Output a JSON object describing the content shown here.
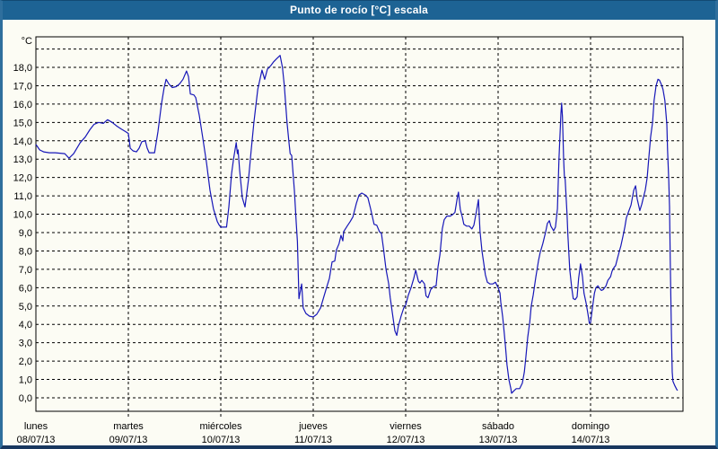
{
  "window": {
    "title": "Punto de rocío [°C] escala"
  },
  "colors": {
    "titlebar_bg": "#1d6394",
    "titlebar_text": "#ffffff",
    "frame_side": "#2f6f9d",
    "frame_bottom": "#18375f",
    "page_bg": "#fcfcf4",
    "grid": "#000000",
    "axis_text": "#000000",
    "line": "#1717b8"
  },
  "chart_data": {
    "type": "line",
    "title": "Punto de rocío [°C] escala",
    "xlabel": "",
    "ylabel": "°C",
    "grid": "dashed",
    "legend": "none",
    "ylim": [
      0,
      19.7
    ],
    "y_gridline_step": 1,
    "y_gridline_max": 19,
    "y_axis": {
      "unit_label": "°C",
      "tick_values": [
        0,
        1,
        2,
        3,
        4,
        5,
        6,
        7,
        8,
        9,
        10,
        11,
        12,
        13,
        14,
        15,
        16,
        17,
        18
      ],
      "tick_labels": [
        "0,0",
        "1,0",
        "2,0",
        "3,0",
        "4,0",
        "5,0",
        "6,0",
        "7,0",
        "8,0",
        "9,0",
        "10,0",
        "11,0",
        "12,0",
        "13,0",
        "14,0",
        "15,0",
        "16,0",
        "17,0",
        "18,0"
      ]
    },
    "x_axis": {
      "hours_total": 168,
      "hours_per_day": 24,
      "days": [
        {
          "name": "lunes",
          "date": "08/07/13"
        },
        {
          "name": "martes",
          "date": "09/07/13"
        },
        {
          "name": "miércoles",
          "date": "10/07/13"
        },
        {
          "name": "jueves",
          "date": "11/07/13"
        },
        {
          "name": "viernes",
          "date": "12/07/13"
        },
        {
          "name": "sábado",
          "date": "13/07/13"
        },
        {
          "name": "domingo",
          "date": "14/07/13"
        }
      ]
    },
    "series": [
      {
        "name": "Punto de rocío",
        "color": "#1717b8",
        "points": [
          [
            0,
            13.8
          ],
          [
            1,
            13.5
          ],
          [
            2,
            13.4
          ],
          [
            3.5,
            13.35
          ],
          [
            5,
            13.35
          ],
          [
            7.5,
            13.3
          ],
          [
            8.6,
            13.05
          ],
          [
            9.8,
            13.3
          ],
          [
            11.5,
            13.9
          ],
          [
            12.8,
            14.2
          ],
          [
            14,
            14.6
          ],
          [
            15.1,
            14.9
          ],
          [
            16.3,
            15.0
          ],
          [
            17.5,
            14.95
          ],
          [
            18.6,
            15.15
          ],
          [
            19.8,
            15.0
          ],
          [
            21,
            14.8
          ],
          [
            22.1,
            14.65
          ],
          [
            23.3,
            14.5
          ],
          [
            24,
            14.4
          ],
          [
            24.5,
            13.6
          ],
          [
            25.2,
            13.45
          ],
          [
            26.1,
            13.4
          ],
          [
            26.8,
            13.6
          ],
          [
            27.5,
            13.95
          ],
          [
            28.4,
            14.0
          ],
          [
            28.9,
            13.6
          ],
          [
            29.4,
            13.35
          ],
          [
            30.8,
            13.35
          ],
          [
            31.7,
            14.5
          ],
          [
            32.6,
            16.0
          ],
          [
            33.3,
            16.9
          ],
          [
            33.8,
            17.35
          ],
          [
            34.5,
            17.1
          ],
          [
            35.4,
            16.9
          ],
          [
            36.4,
            16.95
          ],
          [
            37.3,
            17.1
          ],
          [
            38.2,
            17.35
          ],
          [
            39.1,
            17.8
          ],
          [
            39.6,
            17.5
          ],
          [
            40.1,
            16.55
          ],
          [
            41,
            16.5
          ],
          [
            41.5,
            16.35
          ],
          [
            42.4,
            15.4
          ],
          [
            43.3,
            14.2
          ],
          [
            44.3,
            12.8
          ],
          [
            45.2,
            11.3
          ],
          [
            46.1,
            10.3
          ],
          [
            47.1,
            9.6
          ],
          [
            47.6,
            9.4
          ],
          [
            48,
            9.3
          ],
          [
            49,
            9.3
          ],
          [
            49.5,
            9.3
          ],
          [
            50.1,
            10.4
          ],
          [
            50.8,
            12.2
          ],
          [
            51.3,
            13.0
          ],
          [
            52,
            13.9
          ],
          [
            52.3,
            13.3
          ],
          [
            52.5,
            13.5
          ],
          [
            52.9,
            12.4
          ],
          [
            53.6,
            10.9
          ],
          [
            54.3,
            10.4
          ],
          [
            55.2,
            11.9
          ],
          [
            55.9,
            13.5
          ],
          [
            56.6,
            15.0
          ],
          [
            57.6,
            16.8
          ],
          [
            58.7,
            17.85
          ],
          [
            59.4,
            17.35
          ],
          [
            60.1,
            17.9
          ],
          [
            61,
            18.1
          ],
          [
            61.7,
            18.3
          ],
          [
            62.4,
            18.45
          ],
          [
            63.4,
            18.65
          ],
          [
            64,
            18.0
          ],
          [
            64.5,
            17.0
          ],
          [
            65.2,
            15.0
          ],
          [
            65.7,
            13.9
          ],
          [
            66,
            13.3
          ],
          [
            66.4,
            13.2
          ],
          [
            66.6,
            12.7
          ],
          [
            67.1,
            11.3
          ],
          [
            67.6,
            9.5
          ],
          [
            67.9,
            8.5
          ],
          [
            68.3,
            5.4
          ],
          [
            69,
            6.2
          ],
          [
            69.4,
            4.9
          ],
          [
            70.1,
            4.6
          ],
          [
            71,
            4.45
          ],
          [
            72,
            4.4
          ],
          [
            72.9,
            4.55
          ],
          [
            73.9,
            4.9
          ],
          [
            74.6,
            5.4
          ],
          [
            75.3,
            5.9
          ],
          [
            76.2,
            6.5
          ],
          [
            76.9,
            7.4
          ],
          [
            77.6,
            7.45
          ],
          [
            78,
            8.05
          ],
          [
            78.7,
            8.4
          ],
          [
            79.2,
            8.85
          ],
          [
            79.7,
            8.55
          ],
          [
            79.9,
            9.05
          ],
          [
            80.8,
            9.35
          ],
          [
            81.6,
            9.6
          ],
          [
            82.3,
            9.85
          ],
          [
            83.2,
            10.6
          ],
          [
            83.9,
            11.05
          ],
          [
            84.6,
            11.15
          ],
          [
            85.5,
            11.05
          ],
          [
            86.2,
            10.9
          ],
          [
            86.9,
            10.3
          ],
          [
            87.8,
            9.45
          ],
          [
            88.5,
            9.4
          ],
          [
            89.2,
            9.05
          ],
          [
            89.7,
            8.95
          ],
          [
            90.2,
            8.2
          ],
          [
            90.9,
            7.0
          ],
          [
            91.6,
            6.2
          ],
          [
            92,
            5.45
          ],
          [
            92.7,
            4.4
          ],
          [
            93.2,
            3.65
          ],
          [
            93.7,
            3.4
          ],
          [
            94.1,
            3.9
          ],
          [
            94.8,
            4.45
          ],
          [
            95.5,
            4.9
          ],
          [
            96,
            5.05
          ],
          [
            96.7,
            5.6
          ],
          [
            97.4,
            6.0
          ],
          [
            98.1,
            6.5
          ],
          [
            98.6,
            6.95
          ],
          [
            99.3,
            6.35
          ],
          [
            99.7,
            6.25
          ],
          [
            100.2,
            6.4
          ],
          [
            100.9,
            6.2
          ],
          [
            101.3,
            5.55
          ],
          [
            101.8,
            5.45
          ],
          [
            102.5,
            5.9
          ],
          [
            103.2,
            6.05
          ],
          [
            103.9,
            6.1
          ],
          [
            104.4,
            7.15
          ],
          [
            104.9,
            7.8
          ],
          [
            105.5,
            9.2
          ],
          [
            106,
            9.7
          ],
          [
            106.7,
            9.9
          ],
          [
            107.6,
            9.9
          ],
          [
            108.3,
            10.0
          ],
          [
            108.8,
            10.1
          ],
          [
            109.5,
            11.0
          ],
          [
            109.7,
            11.2
          ],
          [
            110.2,
            10.25
          ],
          [
            110.7,
            9.85
          ],
          [
            111.1,
            9.45
          ],
          [
            111.8,
            9.35
          ],
          [
            112.5,
            9.35
          ],
          [
            113.2,
            9.2
          ],
          [
            113.7,
            9.4
          ],
          [
            114.4,
            10.2
          ],
          [
            114.9,
            10.8
          ],
          [
            115.3,
            9.1
          ],
          [
            115.8,
            8.0
          ],
          [
            116.3,
            7.3
          ],
          [
            116.7,
            6.7
          ],
          [
            117.2,
            6.3
          ],
          [
            117.9,
            6.2
          ],
          [
            118.6,
            6.2
          ],
          [
            119.3,
            6.3
          ],
          [
            120,
            6.0
          ],
          [
            120.5,
            5.7
          ],
          [
            120.7,
            5.2
          ],
          [
            121.2,
            4.4
          ],
          [
            121.6,
            3.5
          ],
          [
            121.9,
            2.8
          ],
          [
            122.3,
            1.8
          ],
          [
            122.8,
            1.0
          ],
          [
            123.3,
            0.5
          ],
          [
            123.5,
            0.25
          ],
          [
            124.2,
            0.4
          ],
          [
            124.7,
            0.5
          ],
          [
            125.6,
            0.5
          ],
          [
            126.3,
            0.8
          ],
          [
            126.8,
            1.4
          ],
          [
            127.2,
            2.2
          ],
          [
            127.7,
            3.3
          ],
          [
            128.2,
            4.1
          ],
          [
            128.6,
            5.0
          ],
          [
            129.1,
            5.6
          ],
          [
            129.8,
            6.6
          ],
          [
            130.5,
            7.5
          ],
          [
            130.9,
            7.9
          ],
          [
            131.6,
            8.4
          ],
          [
            132.3,
            9.0
          ],
          [
            132.8,
            9.5
          ],
          [
            133.3,
            9.65
          ],
          [
            133.7,
            9.35
          ],
          [
            134.4,
            9.1
          ],
          [
            134.9,
            9.3
          ],
          [
            135.4,
            10.3
          ],
          [
            135.8,
            13.0
          ],
          [
            136.3,
            15.5
          ],
          [
            136.5,
            16.05
          ],
          [
            136.7,
            15.3
          ],
          [
            137,
            13.0
          ],
          [
            137.2,
            12.1
          ],
          [
            137.4,
            11.9
          ],
          [
            137.9,
            10.0
          ],
          [
            138.1,
            8.9
          ],
          [
            138.6,
            7.0
          ],
          [
            139.1,
            6.0
          ],
          [
            139.5,
            5.4
          ],
          [
            140,
            5.35
          ],
          [
            140.5,
            5.5
          ],
          [
            140.9,
            6.5
          ],
          [
            141.4,
            7.3
          ],
          [
            141.9,
            6.6
          ],
          [
            142.3,
            5.7
          ],
          [
            142.8,
            5.2
          ],
          [
            143.3,
            4.6
          ],
          [
            143.7,
            4.05
          ],
          [
            144,
            4.1
          ],
          [
            144.5,
            4.9
          ],
          [
            145,
            5.7
          ],
          [
            145.4,
            6.0
          ],
          [
            145.9,
            6.1
          ],
          [
            146.4,
            5.95
          ],
          [
            146.8,
            5.85
          ],
          [
            147.3,
            5.9
          ],
          [
            148,
            6.1
          ],
          [
            148.5,
            6.4
          ],
          [
            149.2,
            6.6
          ],
          [
            149.6,
            6.9
          ],
          [
            150.1,
            7.1
          ],
          [
            150.5,
            7.2
          ],
          [
            151,
            7.6
          ],
          [
            151.5,
            8.0
          ],
          [
            151.9,
            8.3
          ],
          [
            152.4,
            8.8
          ],
          [
            152.9,
            9.3
          ],
          [
            153.3,
            9.8
          ],
          [
            153.8,
            10.1
          ],
          [
            154.5,
            10.5
          ],
          [
            155.2,
            11.3
          ],
          [
            155.7,
            11.55
          ],
          [
            156.1,
            10.85
          ],
          [
            156.8,
            10.2
          ],
          [
            157.3,
            10.55
          ],
          [
            157.7,
            10.9
          ],
          [
            158.2,
            11.3
          ],
          [
            158.7,
            12.0
          ],
          [
            159.1,
            13.0
          ],
          [
            159.6,
            14.2
          ],
          [
            160.1,
            15.0
          ],
          [
            160.5,
            16.2
          ],
          [
            161,
            17.0
          ],
          [
            161.5,
            17.35
          ],
          [
            161.9,
            17.3
          ],
          [
            162.4,
            17.05
          ],
          [
            162.8,
            16.8
          ],
          [
            163.3,
            16.2
          ],
          [
            163.8,
            14.9
          ],
          [
            164,
            13.5
          ],
          [
            164.3,
            11.9
          ],
          [
            164.5,
            10.4
          ],
          [
            164.7,
            7.5
          ],
          [
            165,
            3.5
          ],
          [
            165.2,
            1.4
          ],
          [
            165.4,
            0.9
          ],
          [
            165.9,
            0.65
          ],
          [
            166.4,
            0.45
          ],
          [
            166.6,
            0.4
          ]
        ]
      }
    ]
  }
}
